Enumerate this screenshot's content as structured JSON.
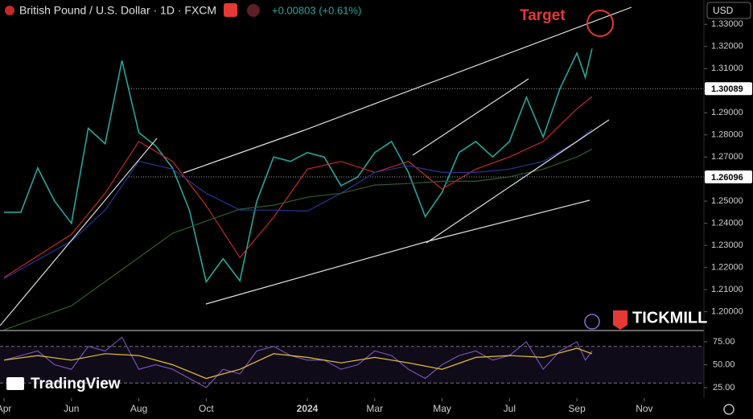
{
  "header": {
    "title": "British Pound / U.S. Dollar · 1D · FXCM",
    "change": "+0.00803 (+0.61%)",
    "currency": "USD"
  },
  "annotation": "Target",
  "branding": {
    "broker": "TICKMILL",
    "platform": "TradingView"
  },
  "chart_data": [
    {
      "type": "line",
      "xlim": [
        -0.12,
        20.77
      ],
      "xticks": [
        {
          "value": 0,
          "label": "Apr"
        },
        {
          "value": 2,
          "label": "Jun"
        },
        {
          "value": 4,
          "label": "Aug"
        },
        {
          "value": 6,
          "label": "Oct"
        },
        {
          "value": 9,
          "label": "2024"
        },
        {
          "value": 11,
          "label": "Mar"
        },
        {
          "value": 13,
          "label": "May"
        },
        {
          "value": 15,
          "label": "Jul"
        },
        {
          "value": 17,
          "label": "Sep"
        },
        {
          "value": 19,
          "label": "Nov"
        }
      ],
      "ylim": [
        1.1955,
        1.341
      ],
      "yticks": [
        {
          "value": 1.2,
          "label": "1.20000"
        },
        {
          "value": 1.21,
          "label": "1.21000"
        },
        {
          "value": 1.22,
          "label": "1.22000"
        },
        {
          "value": 1.23,
          "label": "1.23000"
        },
        {
          "value": 1.24,
          "label": "1.24000"
        },
        {
          "value": 1.25,
          "label": "1.25000"
        },
        {
          "value": 1.26,
          "label": "1.26000"
        },
        {
          "value": 1.27,
          "label": "1.27000"
        },
        {
          "value": 1.28,
          "label": "1.28000"
        },
        {
          "value": 1.29,
          "label": "1.29000"
        },
        {
          "value": 1.3,
          "label": "1.30000"
        },
        {
          "value": 1.31,
          "label": "1.31000"
        },
        {
          "value": 1.32,
          "label": "1.32000"
        },
        {
          "value": 1.33,
          "label": "1.33000"
        }
      ],
      "price_lines": [
        1.30089,
        1.26096
      ],
      "series": [
        {
          "color": "#26a69a",
          "x": [
            0,
            0.5,
            1,
            1.5,
            2,
            2.5,
            3,
            3.5,
            4,
            4.5,
            5,
            5.5,
            6,
            6.5,
            7,
            7.5,
            8,
            8.5,
            9,
            9.5,
            10,
            10.5,
            11,
            11.5,
            12,
            12.5,
            13,
            13.5,
            14,
            14.5,
            15,
            15.5,
            16,
            16.5,
            17,
            17.25,
            17.45
          ],
          "values": [
            1.245,
            1.245,
            1.265,
            1.25,
            1.24,
            1.283,
            1.276,
            1.3136,
            1.281,
            1.275,
            1.265,
            1.246,
            1.2135,
            1.224,
            1.214,
            1.25,
            1.27,
            1.268,
            1.272,
            1.27,
            1.257,
            1.261,
            1.272,
            1.277,
            1.263,
            1.243,
            1.254,
            1.272,
            1.277,
            1.27,
            1.277,
            1.297,
            1.279,
            1.301,
            1.317,
            1.306,
            1.319
          ]
        },
        {
          "color": "#c62828",
          "x": [
            0,
            2,
            3,
            4,
            5,
            6,
            7,
            8,
            9,
            10,
            11,
            12,
            13,
            14,
            15,
            16,
            17,
            17.45
          ],
          "values": [
            1.2155,
            1.235,
            1.2536,
            1.277,
            1.268,
            1.248,
            1.2245,
            1.2427,
            1.2645,
            1.268,
            1.263,
            1.268,
            1.2555,
            1.2645,
            1.27,
            1.277,
            1.2918,
            1.2973
          ]
        },
        {
          "color": "#283593",
          "x": [
            0,
            2,
            3,
            4,
            5,
            6,
            7,
            8,
            9,
            10,
            11,
            12,
            13,
            14,
            15,
            16,
            17,
            17.45
          ],
          "values": [
            1.215,
            1.232,
            1.246,
            1.268,
            1.2645,
            1.2536,
            1.246,
            1.246,
            1.2455,
            1.2536,
            1.263,
            1.266,
            1.263,
            1.263,
            1.2645,
            1.268,
            1.277,
            1.2827
          ]
        },
        {
          "color": "#2e5d2e",
          "x": [
            0,
            2,
            3,
            4,
            5,
            6,
            7,
            8,
            9,
            10,
            11,
            12,
            13,
            14,
            15,
            16,
            17,
            17.45
          ],
          "values": [
            1.1918,
            1.2027,
            1.2136,
            1.2245,
            1.2355,
            1.241,
            1.2464,
            1.2482,
            1.2518,
            1.2536,
            1.2573,
            1.258,
            1.259,
            1.259,
            1.261,
            1.2645,
            1.27,
            1.2736
          ]
        }
      ]
    },
    {
      "type": "line",
      "ylim": [
        13.6,
        86.4
      ],
      "yticks": [
        {
          "value": 75,
          "label": "75.00"
        },
        {
          "value": 50,
          "label": "50.00"
        },
        {
          "value": 25,
          "label": "25.00"
        }
      ],
      "levels": [
        70,
        30
      ],
      "series": [
        {
          "color": "#7e57c2",
          "x": [
            0,
            0.5,
            1,
            1.5,
            2,
            2.5,
            3,
            3.5,
            4,
            4.5,
            5,
            5.5,
            6,
            6.5,
            7,
            7.5,
            8,
            8.5,
            9,
            9.5,
            10,
            10.5,
            11,
            11.5,
            12,
            12.5,
            13,
            13.5,
            14,
            14.5,
            15,
            15.5,
            16,
            16.5,
            17,
            17.25,
            17.45
          ],
          "values": [
            55,
            60,
            65,
            50,
            45,
            70,
            65,
            80,
            45,
            50,
            45,
            35,
            25,
            45,
            40,
            65,
            70,
            60,
            55,
            55,
            45,
            50,
            65,
            60,
            45,
            35,
            50,
            60,
            65,
            55,
            60,
            75,
            45,
            65,
            75,
            55,
            65
          ]
        },
        {
          "color": "#e6c229",
          "x": [
            0,
            1,
            2,
            3,
            4,
            5,
            6,
            7,
            8,
            9,
            10,
            11,
            12,
            13,
            14,
            15,
            16,
            17,
            17.45
          ],
          "values": [
            55,
            60,
            55,
            62,
            60,
            50,
            35,
            45,
            62,
            58,
            52,
            58,
            52,
            45,
            58,
            60,
            58,
            68,
            62
          ]
        }
      ]
    }
  ]
}
